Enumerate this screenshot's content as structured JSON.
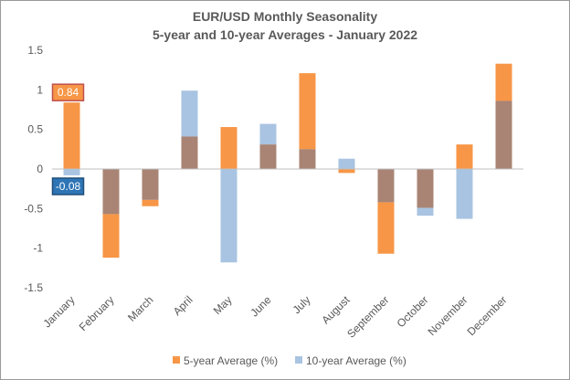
{
  "chart_data": {
    "type": "bar",
    "title": "EUR/USD Monthly Seasonality",
    "subtitle": "5-year and 10-year Averages - January 2022",
    "categories": [
      "January",
      "February",
      "March",
      "April",
      "May",
      "June",
      "July",
      "August",
      "September",
      "October",
      "November",
      "December"
    ],
    "series": [
      {
        "name": "5-year Average (%)",
        "color": "#F79646",
        "values": [
          0.84,
          -1.12,
          -0.47,
          0.41,
          0.53,
          0.31,
          1.21,
          -0.05,
          -1.07,
          -0.49,
          0.31,
          1.33
        ]
      },
      {
        "name": "10-year Average (%)",
        "color": "#A9C4E2",
        "values": [
          -0.08,
          -0.57,
          -0.39,
          0.99,
          -1.18,
          0.57,
          0.25,
          0.13,
          -0.42,
          -0.59,
          -0.63,
          0.86
        ]
      }
    ],
    "overlap_color": "#A98474",
    "ylim": [
      -1.5,
      1.5
    ],
    "yticks": [
      "1.5",
      "1",
      "0.5",
      "0",
      "-0.5",
      "-1",
      "-1.5"
    ],
    "ytick_values": [
      1.5,
      1,
      0.5,
      0,
      -0.5,
      -1,
      -1.5
    ],
    "xlabel": "",
    "ylabel": "",
    "grid": false,
    "legend_position": "bottom",
    "data_labels": [
      {
        "text": "0.84",
        "category": "January",
        "series": "5-year Average (%)",
        "value": 0.84,
        "bg": "#F79646",
        "border": "#C0504D"
      },
      {
        "text": "-0.08",
        "category": "January",
        "series": "10-year Average (%)",
        "value": -0.08,
        "bg": "#2E75B6",
        "border": "#1F4E79"
      }
    ]
  }
}
